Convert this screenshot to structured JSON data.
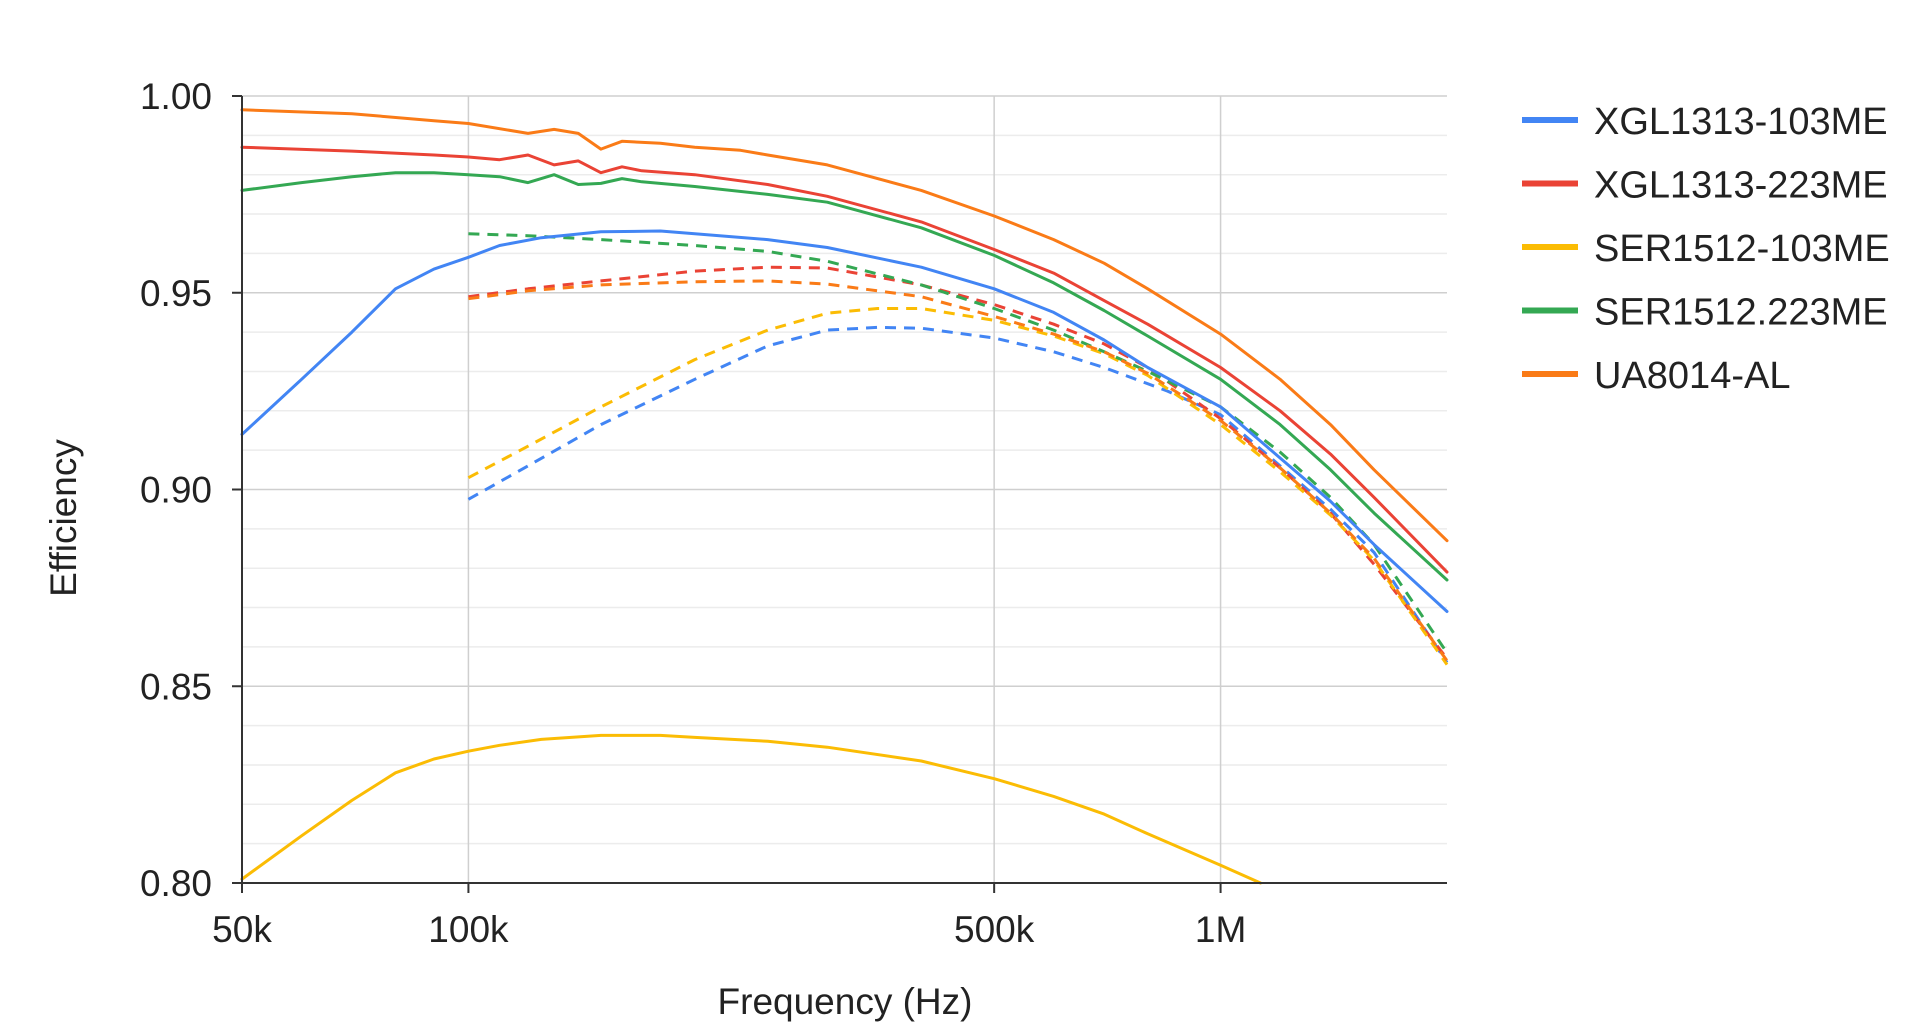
{
  "chart_data": {
    "type": "line",
    "title": "",
    "xlabel": "Frequency (Hz)",
    "ylabel": "Efficiency",
    "x_scale": "log",
    "xlim": [
      50000,
      2000000
    ],
    "ylim": [
      0.8,
      1.0
    ],
    "x_ticks": [
      {
        "value": 50000,
        "label": "50k"
      },
      {
        "value": 100000,
        "label": "100k"
      },
      {
        "value": 500000,
        "label": "500k"
      },
      {
        "value": 1000000,
        "label": "1M"
      }
    ],
    "y_ticks": [
      {
        "value": 0.8,
        "label": "0.80"
      },
      {
        "value": 0.85,
        "label": "0.85"
      },
      {
        "value": 0.9,
        "label": "0.90"
      },
      {
        "value": 0.95,
        "label": "0.95"
      },
      {
        "value": 1.0,
        "label": "1.00"
      }
    ],
    "grid": true,
    "legend_position": "right",
    "series": [
      {
        "name": "XGL1313-103ME",
        "color": "#4285F4",
        "style": "solid",
        "points": [
          [
            50000,
            0.914
          ],
          [
            60000,
            0.928
          ],
          [
            70000,
            0.94
          ],
          [
            80000,
            0.951
          ],
          [
            90000,
            0.956
          ],
          [
            100000,
            0.959
          ],
          [
            110000,
            0.962
          ],
          [
            125000,
            0.964
          ],
          [
            150000,
            0.9655
          ],
          [
            180000,
            0.9657
          ],
          [
            200000,
            0.965
          ],
          [
            250000,
            0.9635
          ],
          [
            300000,
            0.9615
          ],
          [
            400000,
            0.9565
          ],
          [
            500000,
            0.951
          ],
          [
            600000,
            0.945
          ],
          [
            700000,
            0.938
          ],
          [
            800000,
            0.931
          ],
          [
            1000000,
            0.921
          ],
          [
            1200000,
            0.908
          ],
          [
            1400000,
            0.897
          ],
          [
            1600000,
            0.886
          ],
          [
            2000000,
            0.869
          ]
        ]
      },
      {
        "name": "XGL1313-223ME",
        "color": "#EA4335",
        "style": "solid",
        "points": [
          [
            50000,
            0.987
          ],
          [
            70000,
            0.986
          ],
          [
            90000,
            0.985
          ],
          [
            100000,
            0.9845
          ],
          [
            110000,
            0.9838
          ],
          [
            120000,
            0.985
          ],
          [
            130000,
            0.9825
          ],
          [
            140000,
            0.9835
          ],
          [
            150000,
            0.9805
          ],
          [
            160000,
            0.982
          ],
          [
            170000,
            0.981
          ],
          [
            200000,
            0.98
          ],
          [
            250000,
            0.9775
          ],
          [
            300000,
            0.9745
          ],
          [
            400000,
            0.968
          ],
          [
            500000,
            0.961
          ],
          [
            600000,
            0.955
          ],
          [
            700000,
            0.948
          ],
          [
            800000,
            0.942
          ],
          [
            1000000,
            0.931
          ],
          [
            1200000,
            0.92
          ],
          [
            1400000,
            0.909
          ],
          [
            1600000,
            0.898
          ],
          [
            2000000,
            0.879
          ]
        ]
      },
      {
        "name": "SER1512-103ME",
        "color": "#FBBC04",
        "style": "solid",
        "points": [
          [
            50000,
            0.801
          ],
          [
            60000,
            0.812
          ],
          [
            70000,
            0.821
          ],
          [
            80000,
            0.828
          ],
          [
            90000,
            0.8315
          ],
          [
            100000,
            0.8335
          ],
          [
            110000,
            0.835
          ],
          [
            125000,
            0.8365
          ],
          [
            150000,
            0.8375
          ],
          [
            180000,
            0.8375
          ],
          [
            200000,
            0.837
          ],
          [
            250000,
            0.836
          ],
          [
            300000,
            0.8345
          ],
          [
            400000,
            0.831
          ],
          [
            500000,
            0.8265
          ],
          [
            600000,
            0.822
          ],
          [
            700000,
            0.8175
          ],
          [
            800000,
            0.8125
          ],
          [
            1000000,
            0.8045
          ],
          [
            1130000,
            0.8
          ]
        ]
      },
      {
        "name": "SER1512.223ME",
        "color": "#34A853",
        "style": "solid",
        "points": [
          [
            50000,
            0.976
          ],
          [
            60000,
            0.978
          ],
          [
            70000,
            0.9795
          ],
          [
            80000,
            0.9805
          ],
          [
            90000,
            0.9805
          ],
          [
            100000,
            0.98
          ],
          [
            110000,
            0.9795
          ],
          [
            120000,
            0.978
          ],
          [
            130000,
            0.98
          ],
          [
            140000,
            0.9775
          ],
          [
            150000,
            0.9778
          ],
          [
            160000,
            0.979
          ],
          [
            170000,
            0.9782
          ],
          [
            200000,
            0.977
          ],
          [
            250000,
            0.975
          ],
          [
            300000,
            0.973
          ],
          [
            400000,
            0.9665
          ],
          [
            500000,
            0.9595
          ],
          [
            600000,
            0.9525
          ],
          [
            700000,
            0.9455
          ],
          [
            800000,
            0.939
          ],
          [
            1000000,
            0.928
          ],
          [
            1200000,
            0.9165
          ],
          [
            1400000,
            0.905
          ],
          [
            1600000,
            0.894
          ],
          [
            2000000,
            0.877
          ]
        ]
      },
      {
        "name": "UA8014-AL",
        "color": "#FA7B17",
        "style": "solid",
        "points": [
          [
            50000,
            0.9965
          ],
          [
            70000,
            0.9955
          ],
          [
            90000,
            0.9937
          ],
          [
            100000,
            0.993
          ],
          [
            120000,
            0.9905
          ],
          [
            130000,
            0.9915
          ],
          [
            140000,
            0.9905
          ],
          [
            150000,
            0.9865
          ],
          [
            160000,
            0.9885
          ],
          [
            180000,
            0.988
          ],
          [
            200000,
            0.987
          ],
          [
            230000,
            0.9862
          ],
          [
            250000,
            0.985
          ],
          [
            300000,
            0.9825
          ],
          [
            400000,
            0.976
          ],
          [
            500000,
            0.9695
          ],
          [
            600000,
            0.9635
          ],
          [
            700000,
            0.9575
          ],
          [
            800000,
            0.951
          ],
          [
            1000000,
            0.9395
          ],
          [
            1200000,
            0.928
          ],
          [
            1400000,
            0.9165
          ],
          [
            1600000,
            0.905
          ],
          [
            2000000,
            0.887
          ]
        ]
      },
      {
        "name": "",
        "color": "#4285F4",
        "style": "dashed",
        "points": [
          [
            100000,
            0.8975
          ],
          [
            120000,
            0.906
          ],
          [
            150000,
            0.9165
          ],
          [
            200000,
            0.928
          ],
          [
            250000,
            0.9365
          ],
          [
            300000,
            0.9405
          ],
          [
            350000,
            0.9412
          ],
          [
            400000,
            0.941
          ],
          [
            500000,
            0.9385
          ],
          [
            600000,
            0.935
          ],
          [
            700000,
            0.931
          ],
          [
            850000,
            0.925
          ],
          [
            1000000,
            0.919
          ],
          [
            1200000,
            0.906
          ],
          [
            1400000,
            0.895
          ],
          [
            1600000,
            0.884
          ],
          [
            2000000,
            0.856
          ]
        ]
      },
      {
        "name": "",
        "color": "#EA4335",
        "style": "dashed",
        "points": [
          [
            100000,
            0.949
          ],
          [
            120000,
            0.951
          ],
          [
            150000,
            0.953
          ],
          [
            200000,
            0.9555
          ],
          [
            250000,
            0.9565
          ],
          [
            300000,
            0.9563
          ],
          [
            400000,
            0.952
          ],
          [
            500000,
            0.947
          ],
          [
            600000,
            0.942
          ],
          [
            700000,
            0.937
          ],
          [
            800000,
            0.931
          ],
          [
            1000000,
            0.918
          ],
          [
            1200000,
            0.9055
          ],
          [
            1400000,
            0.894
          ],
          [
            1600000,
            0.881
          ],
          [
            2000000,
            0.857
          ]
        ]
      },
      {
        "name": "",
        "color": "#FBBC04",
        "style": "dashed",
        "points": [
          [
            100000,
            0.903
          ],
          [
            120000,
            0.911
          ],
          [
            150000,
            0.921
          ],
          [
            200000,
            0.933
          ],
          [
            250000,
            0.9405
          ],
          [
            300000,
            0.9448
          ],
          [
            350000,
            0.946
          ],
          [
            400000,
            0.946
          ],
          [
            500000,
            0.943
          ],
          [
            600000,
            0.939
          ],
          [
            700000,
            0.9345
          ],
          [
            800000,
            0.929
          ],
          [
            1000000,
            0.9165
          ],
          [
            1200000,
            0.9045
          ],
          [
            1400000,
            0.8935
          ],
          [
            1600000,
            0.882
          ],
          [
            2000000,
            0.8555
          ]
        ]
      },
      {
        "name": "",
        "color": "#34A853",
        "style": "dashed",
        "points": [
          [
            100000,
            0.965
          ],
          [
            120000,
            0.9645
          ],
          [
            150000,
            0.9635
          ],
          [
            200000,
            0.962
          ],
          [
            250000,
            0.9605
          ],
          [
            300000,
            0.958
          ],
          [
            400000,
            0.952
          ],
          [
            500000,
            0.946
          ],
          [
            600000,
            0.9405
          ],
          [
            700000,
            0.935
          ],
          [
            800000,
            0.93
          ],
          [
            1000000,
            0.921
          ],
          [
            1200000,
            0.9095
          ],
          [
            1400000,
            0.898
          ],
          [
            1600000,
            0.886
          ],
          [
            2000000,
            0.8585
          ]
        ]
      },
      {
        "name": "",
        "color": "#FA7B17",
        "style": "dashed",
        "points": [
          [
            100000,
            0.9485
          ],
          [
            120000,
            0.9505
          ],
          [
            150000,
            0.952
          ],
          [
            200000,
            0.9528
          ],
          [
            250000,
            0.953
          ],
          [
            300000,
            0.9522
          ],
          [
            400000,
            0.949
          ],
          [
            500000,
            0.944
          ],
          [
            600000,
            0.9395
          ],
          [
            700000,
            0.935
          ],
          [
            800000,
            0.9295
          ],
          [
            1000000,
            0.9175
          ],
          [
            1200000,
            0.9055
          ],
          [
            1400000,
            0.894
          ],
          [
            1600000,
            0.8825
          ],
          [
            2000000,
            0.8565
          ]
        ]
      }
    ]
  }
}
